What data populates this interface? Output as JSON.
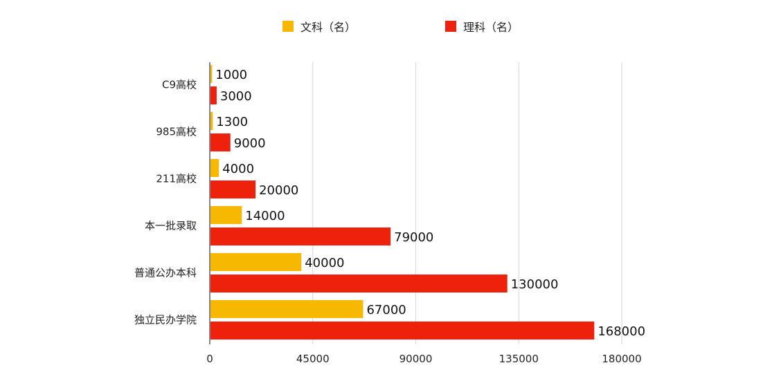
{
  "chart_data": {
    "type": "bar",
    "orientation": "horizontal",
    "categories": [
      "C9高校",
      "985高校",
      "211高校",
      "本一批录取",
      "普通公办本科",
      "独立民办学院"
    ],
    "series": [
      {
        "name": "文科（名）",
        "color": "#F6B800",
        "values": [
          1000,
          1300,
          4000,
          14000,
          40000,
          67000
        ]
      },
      {
        "name": "理科（名）",
        "color": "#EE220C",
        "values": [
          3000,
          9000,
          20000,
          79000,
          130000,
          168000
        ]
      }
    ],
    "x_ticks": [
      0,
      45000,
      90000,
      135000,
      180000
    ],
    "xlim": [
      0,
      180000
    ],
    "grid": "vertical",
    "legend_position": "top"
  }
}
